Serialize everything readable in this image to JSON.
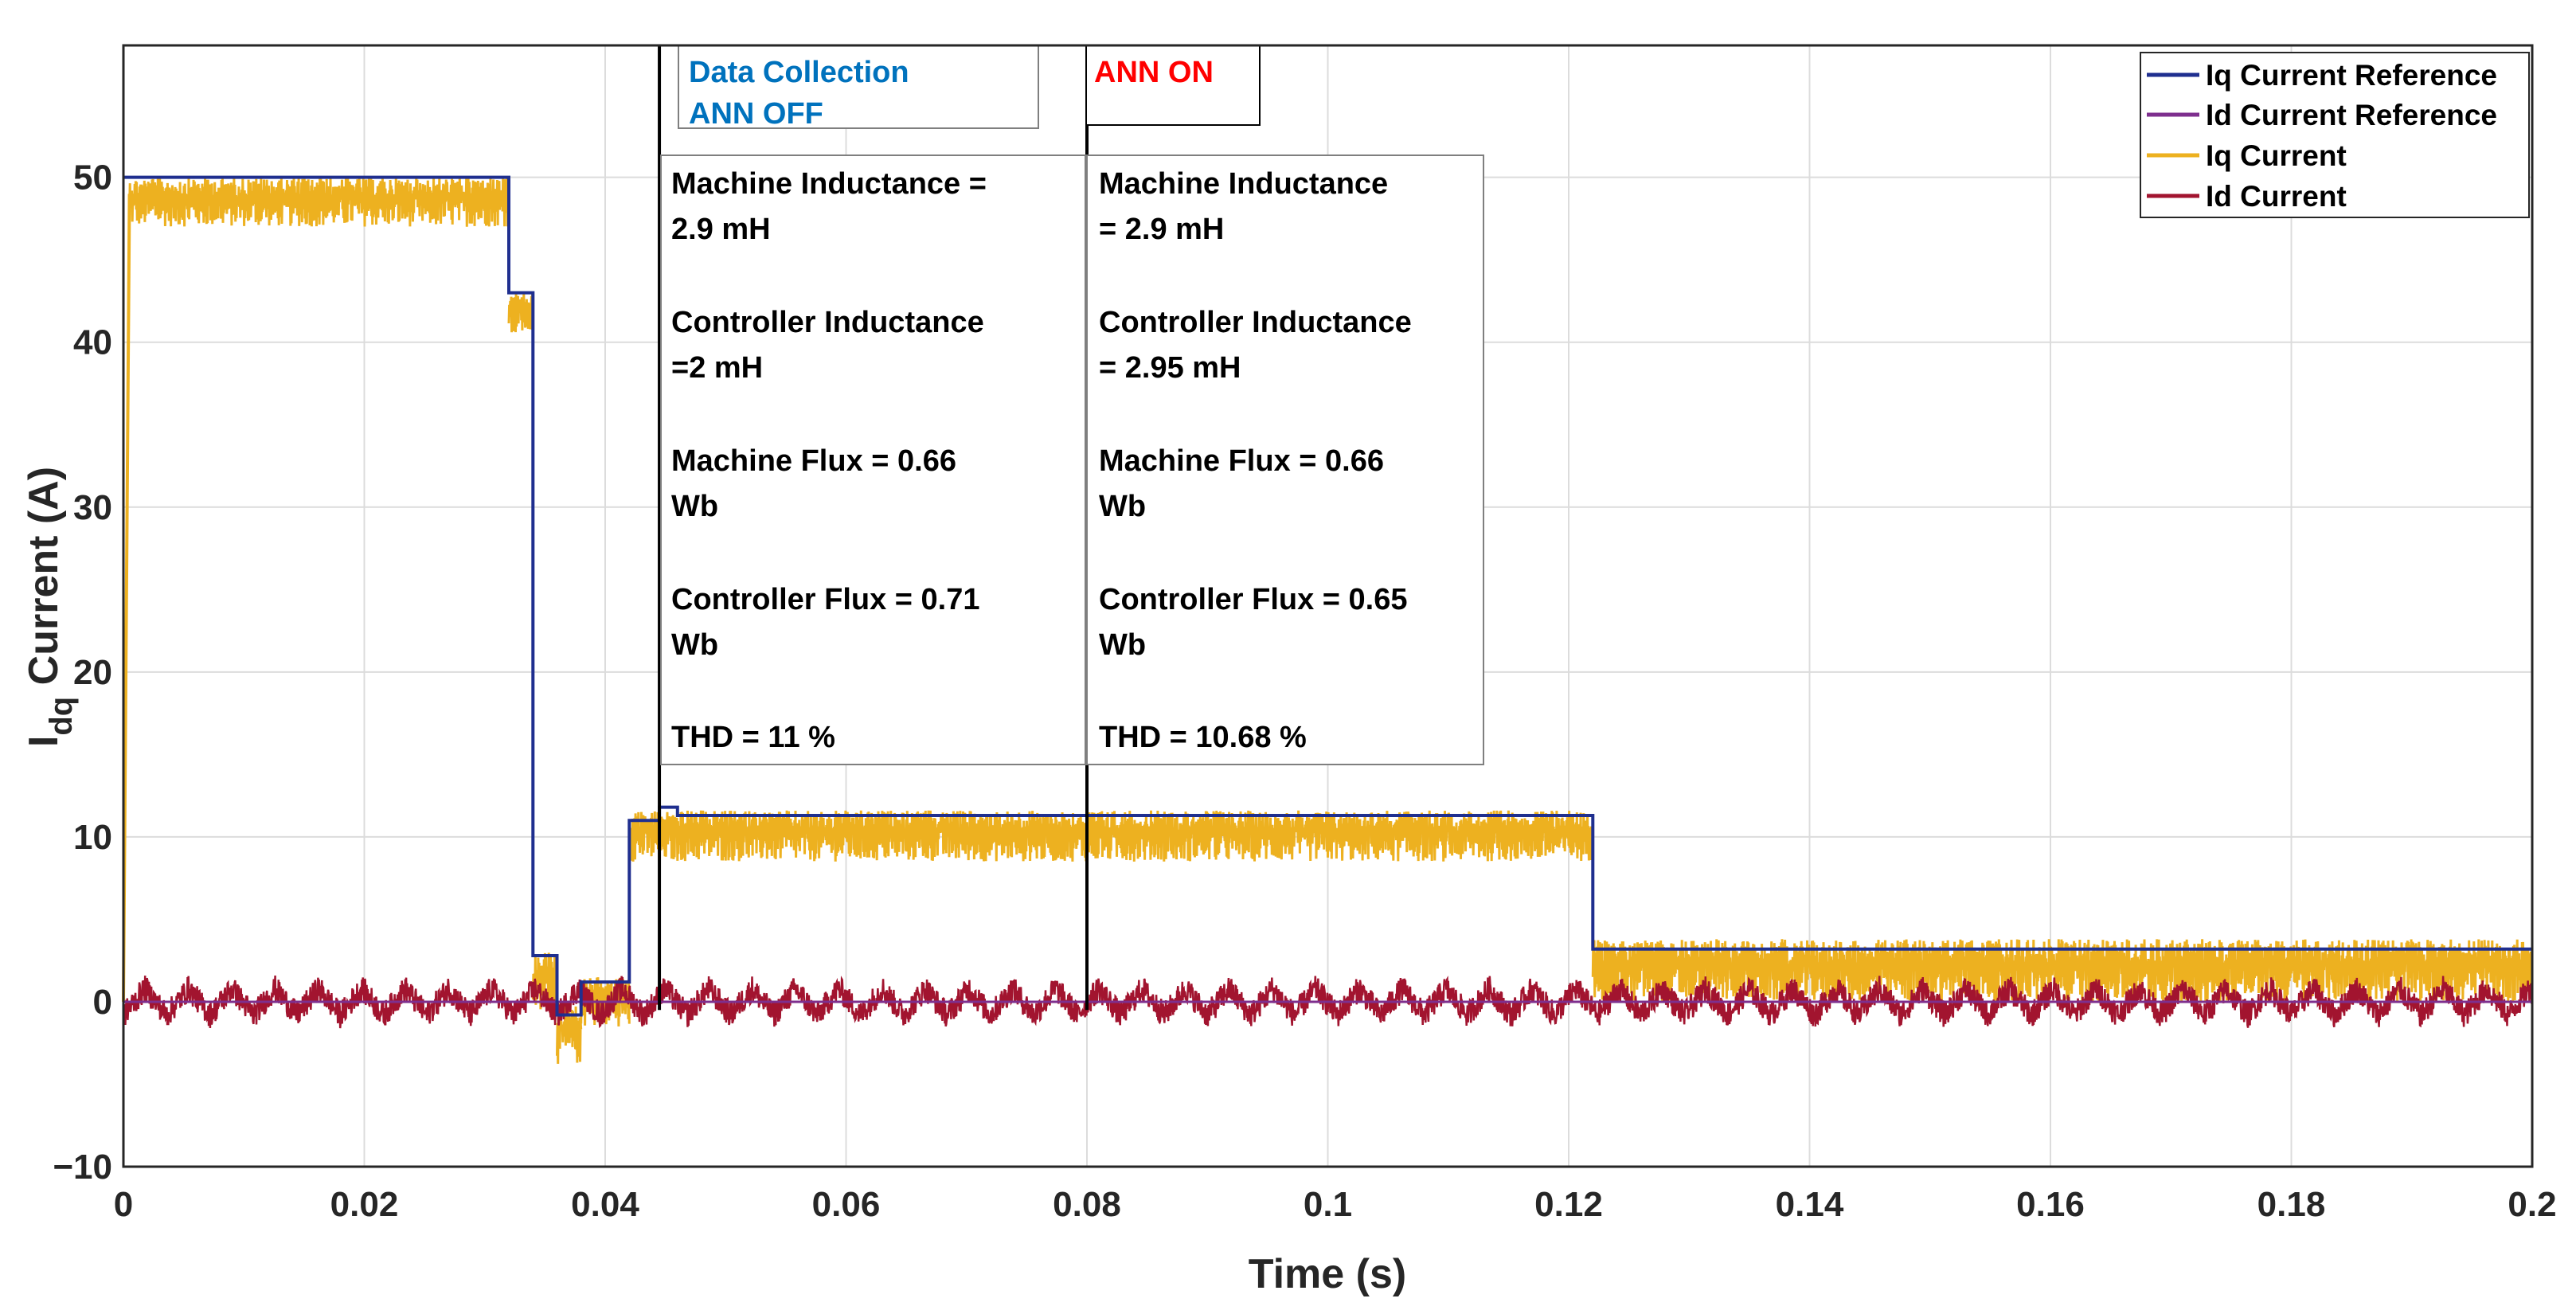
{
  "chart_data": {
    "type": "line",
    "xlabel": "Time (s)",
    "ylabel_main": "I",
    "ylabel_sub": "dq",
    "ylabel_rest": " Current (A)",
    "xlim": [
      0,
      0.2
    ],
    "ylim": [
      -10,
      58
    ],
    "xticks": [
      0,
      0.02,
      0.04,
      0.06,
      0.08,
      0.1,
      0.12,
      0.14,
      0.16,
      0.18,
      0.2
    ],
    "xtick_labels": [
      "0",
      "0.02",
      "0.04",
      "0.06",
      "0.08",
      "0.1",
      "0.12",
      "0.14",
      "0.16",
      "0.18",
      "0.2"
    ],
    "yticks": [
      -10,
      0,
      10,
      20,
      30,
      40,
      50
    ],
    "ytick_labels": [
      "−10",
      "0",
      "10",
      "20",
      "30",
      "40",
      "50"
    ],
    "grid": true,
    "legend_position": "top-right",
    "colors": {
      "iq_ref": "#1f2f8f",
      "id_ref": "#7e2f8e",
      "iq": "#edb120",
      "id": "#a2142f",
      "blue_text": "#0072bd",
      "red_text": "#ff0000"
    },
    "series": [
      {
        "name": "Iq Current Reference",
        "color_key": "iq_ref",
        "kind": "step",
        "segments": [
          {
            "x0": 0.0,
            "x1": 0.032,
            "y": 50
          },
          {
            "x0": 0.032,
            "x1": 0.034,
            "y": 43
          },
          {
            "x0": 0.034,
            "x1": 0.036,
            "y": 2.8
          },
          {
            "x0": 0.036,
            "x1": 0.038,
            "y": -0.8
          },
          {
            "x0": 0.038,
            "x1": 0.042,
            "y": 1.2
          },
          {
            "x0": 0.042,
            "x1": 0.0445,
            "y": 11
          },
          {
            "x0": 0.0445,
            "x1": 0.046,
            "y": 11.8
          },
          {
            "x0": 0.046,
            "x1": 0.122,
            "y": 11.3
          },
          {
            "x0": 0.122,
            "x1": 0.2,
            "y": 3.2
          }
        ]
      },
      {
        "name": "Id Current Reference",
        "color_key": "id_ref",
        "kind": "constant",
        "value": 0
      },
      {
        "name": "Iq Current",
        "color_key": "iq",
        "kind": "noisy-band",
        "segments": [
          {
            "x0": 0.0005,
            "x1": 0.032,
            "lo": 47,
            "hi": 50
          },
          {
            "x0": 0.032,
            "x1": 0.034,
            "lo": 40.5,
            "hi": 43
          },
          {
            "x0": 0.034,
            "x1": 0.036,
            "lo": -0.5,
            "hi": 3
          },
          {
            "x0": 0.036,
            "x1": 0.038,
            "lo": -3.8,
            "hi": 0
          },
          {
            "x0": 0.038,
            "x1": 0.042,
            "lo": -1.5,
            "hi": 1.5
          },
          {
            "x0": 0.042,
            "x1": 0.122,
            "lo": 8.5,
            "hi": 11.6
          },
          {
            "x0": 0.122,
            "x1": 0.2,
            "lo": 0,
            "hi": 3.8
          }
        ]
      },
      {
        "name": "Id Current",
        "color_key": "id",
        "kind": "noisy-oscillation",
        "amplitude": 1.8,
        "period": 0.0036
      }
    ],
    "vlines": [
      0.0445,
      0.08
    ],
    "annotations": {
      "box1_line1": "Data Collection",
      "box1_line2": "ANN OFF",
      "box2_line1": "ANN ON",
      "left_params": [
        "Machine Inductance =",
        "2.9 mH",
        "Controller Inductance",
        "=2 mH",
        "Machine Flux = 0.66",
        "Wb",
        "Controller Flux = 0.71",
        "Wb",
        "THD  = 11 %"
      ],
      "right_params": [
        "Machine Inductance",
        "= 2.9 mH",
        "Controller Inductance",
        "= 2.95 mH",
        "Machine Flux = 0.66",
        "Wb",
        "Controller Flux = 0.65",
        "Wb",
        "THD  = 10.68 %"
      ]
    },
    "legend": [
      "Iq Current Reference",
      "Id Current Reference",
      "Iq Current",
      "Id Current"
    ]
  }
}
